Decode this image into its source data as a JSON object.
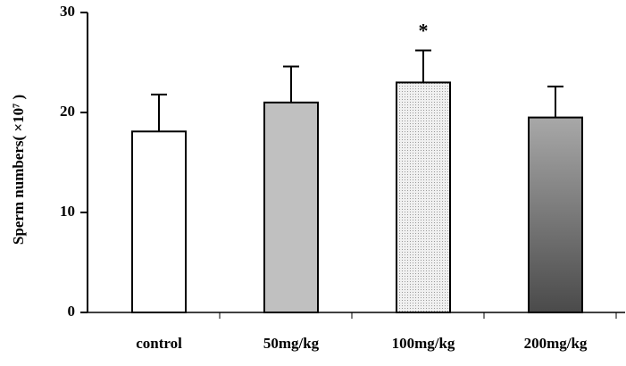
{
  "chart_data": {
    "type": "bar",
    "y_label": "Sperm numbers( ×10⁷ )",
    "categories": [
      "control",
      "50mg/kg",
      "100mg/kg",
      "200mg/kg"
    ],
    "values": [
      18.1,
      21.0,
      23.0,
      19.5
    ],
    "errors": [
      3.7,
      3.6,
      3.2,
      3.1
    ],
    "annotations": [
      null,
      null,
      "*",
      null
    ],
    "colors": [
      "#ffffff",
      "#c0c0c0",
      "#e4e4e4",
      "#4a4a4a"
    ],
    "fill_styles": [
      "solid",
      "solid",
      "dotted",
      "gradient"
    ],
    "ylim": [
      0,
      30
    ],
    "yticks": [
      0,
      10,
      20,
      30
    ],
    "grid": false
  }
}
